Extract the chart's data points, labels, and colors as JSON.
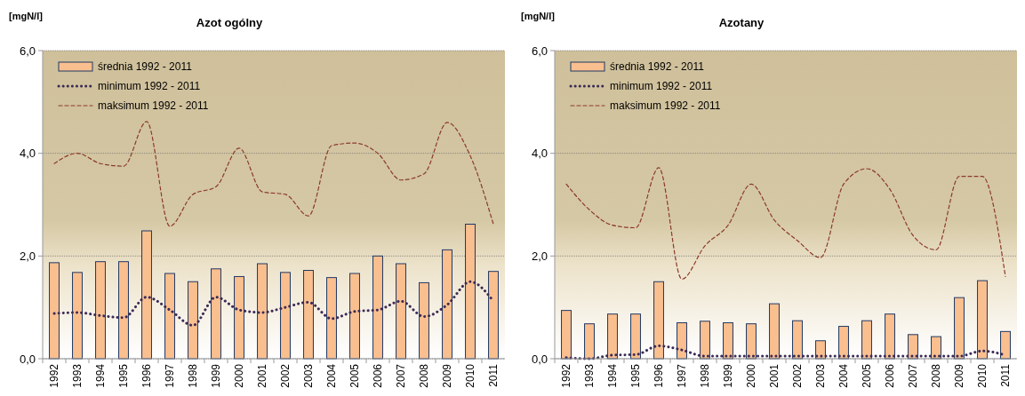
{
  "chart_data": [
    {
      "type": "bar",
      "title": "Azot ogólny",
      "ylabel": "[mgN/l]",
      "categories": [
        "1992",
        "1993",
        "1994",
        "1995",
        "1996",
        "1997",
        "1998",
        "1999",
        "2000",
        "2001",
        "2002",
        "2003",
        "2004",
        "2005",
        "2006",
        "2007",
        "2008",
        "2009",
        "2010",
        "2011"
      ],
      "ylim": [
        0,
        6
      ],
      "yticks": [
        {
          "value": 0,
          "label": "0,0"
        },
        {
          "value": 2,
          "label": "2,0"
        },
        {
          "value": 4,
          "label": "4,0"
        },
        {
          "value": 6,
          "label": "6,0"
        }
      ],
      "grid": "y",
      "legend": "top left",
      "series": [
        {
          "name": "średnia 1992 - 2011",
          "color": "#f9bf8f",
          "values": [
            1.87,
            1.68,
            1.89,
            1.89,
            2.49,
            1.66,
            1.5,
            1.75,
            1.6,
            1.85,
            1.68,
            1.72,
            1.58,
            1.66,
            2.0,
            1.85,
            1.48,
            2.12,
            2.62,
            1.7
          ]
        },
        {
          "name": "minimum 1992 - 2011",
          "type": "line",
          "line_style": "dotted",
          "color": "#3b2a55",
          "values": [
            0.88,
            0.9,
            0.84,
            0.8,
            1.2,
            0.95,
            0.65,
            1.2,
            0.95,
            0.9,
            1.0,
            1.1,
            0.78,
            0.92,
            0.95,
            1.12,
            0.82,
            1.05,
            1.5,
            1.12
          ]
        },
        {
          "name": "maksimum 1992 - 2011",
          "type": "line",
          "line_style": "dashed",
          "color": "#8b3a2a",
          "values": [
            3.8,
            4.0,
            3.8,
            3.75,
            4.62,
            2.58,
            3.2,
            3.35,
            4.1,
            3.25,
            3.2,
            2.78,
            4.15,
            4.2,
            4.0,
            3.48,
            3.6,
            4.6,
            3.95,
            2.62
          ]
        }
      ]
    },
    {
      "type": "bar",
      "title": "Azotany",
      "ylabel": "[mgN/l]",
      "categories": [
        "1992",
        "1993",
        "1994",
        "1995",
        "1996",
        "1997",
        "1998",
        "1999",
        "2000",
        "2001",
        "2002",
        "2003",
        "2004",
        "2005",
        "2006",
        "2007",
        "2008",
        "2009",
        "2010",
        "2011"
      ],
      "ylim": [
        0,
        6
      ],
      "yticks": [
        {
          "value": 0,
          "label": "0,0"
        },
        {
          "value": 2,
          "label": "2,0"
        },
        {
          "value": 4,
          "label": "4,0"
        },
        {
          "value": 6,
          "label": "6,0"
        }
      ],
      "grid": "y",
      "legend": "top left",
      "series": [
        {
          "name": "średnia 1992 - 2011",
          "color": "#f9bf8f",
          "values": [
            0.94,
            0.68,
            0.87,
            0.87,
            1.5,
            0.7,
            0.73,
            0.7,
            0.68,
            1.07,
            0.74,
            0.35,
            0.63,
            0.74,
            0.87,
            0.47,
            0.43,
            1.19,
            1.52,
            0.53
          ]
        },
        {
          "name": "minimum 1992 - 2011",
          "type": "line",
          "line_style": "dotted",
          "color": "#3b2a55",
          "values": [
            0.02,
            0.0,
            0.07,
            0.08,
            0.25,
            0.17,
            0.05,
            0.05,
            0.05,
            0.05,
            0.05,
            0.05,
            0.05,
            0.05,
            0.05,
            0.05,
            0.05,
            0.05,
            0.15,
            0.07
          ]
        },
        {
          "name": "maksimum 1992 - 2011",
          "type": "line",
          "line_style": "dashed",
          "color": "#8b3a2a",
          "values": [
            3.4,
            2.9,
            2.6,
            2.55,
            3.72,
            1.55,
            2.2,
            2.6,
            3.4,
            2.7,
            2.3,
            1.97,
            3.4,
            3.7,
            3.3,
            2.4,
            2.12,
            3.55,
            3.55,
            1.6
          ]
        }
      ]
    }
  ]
}
